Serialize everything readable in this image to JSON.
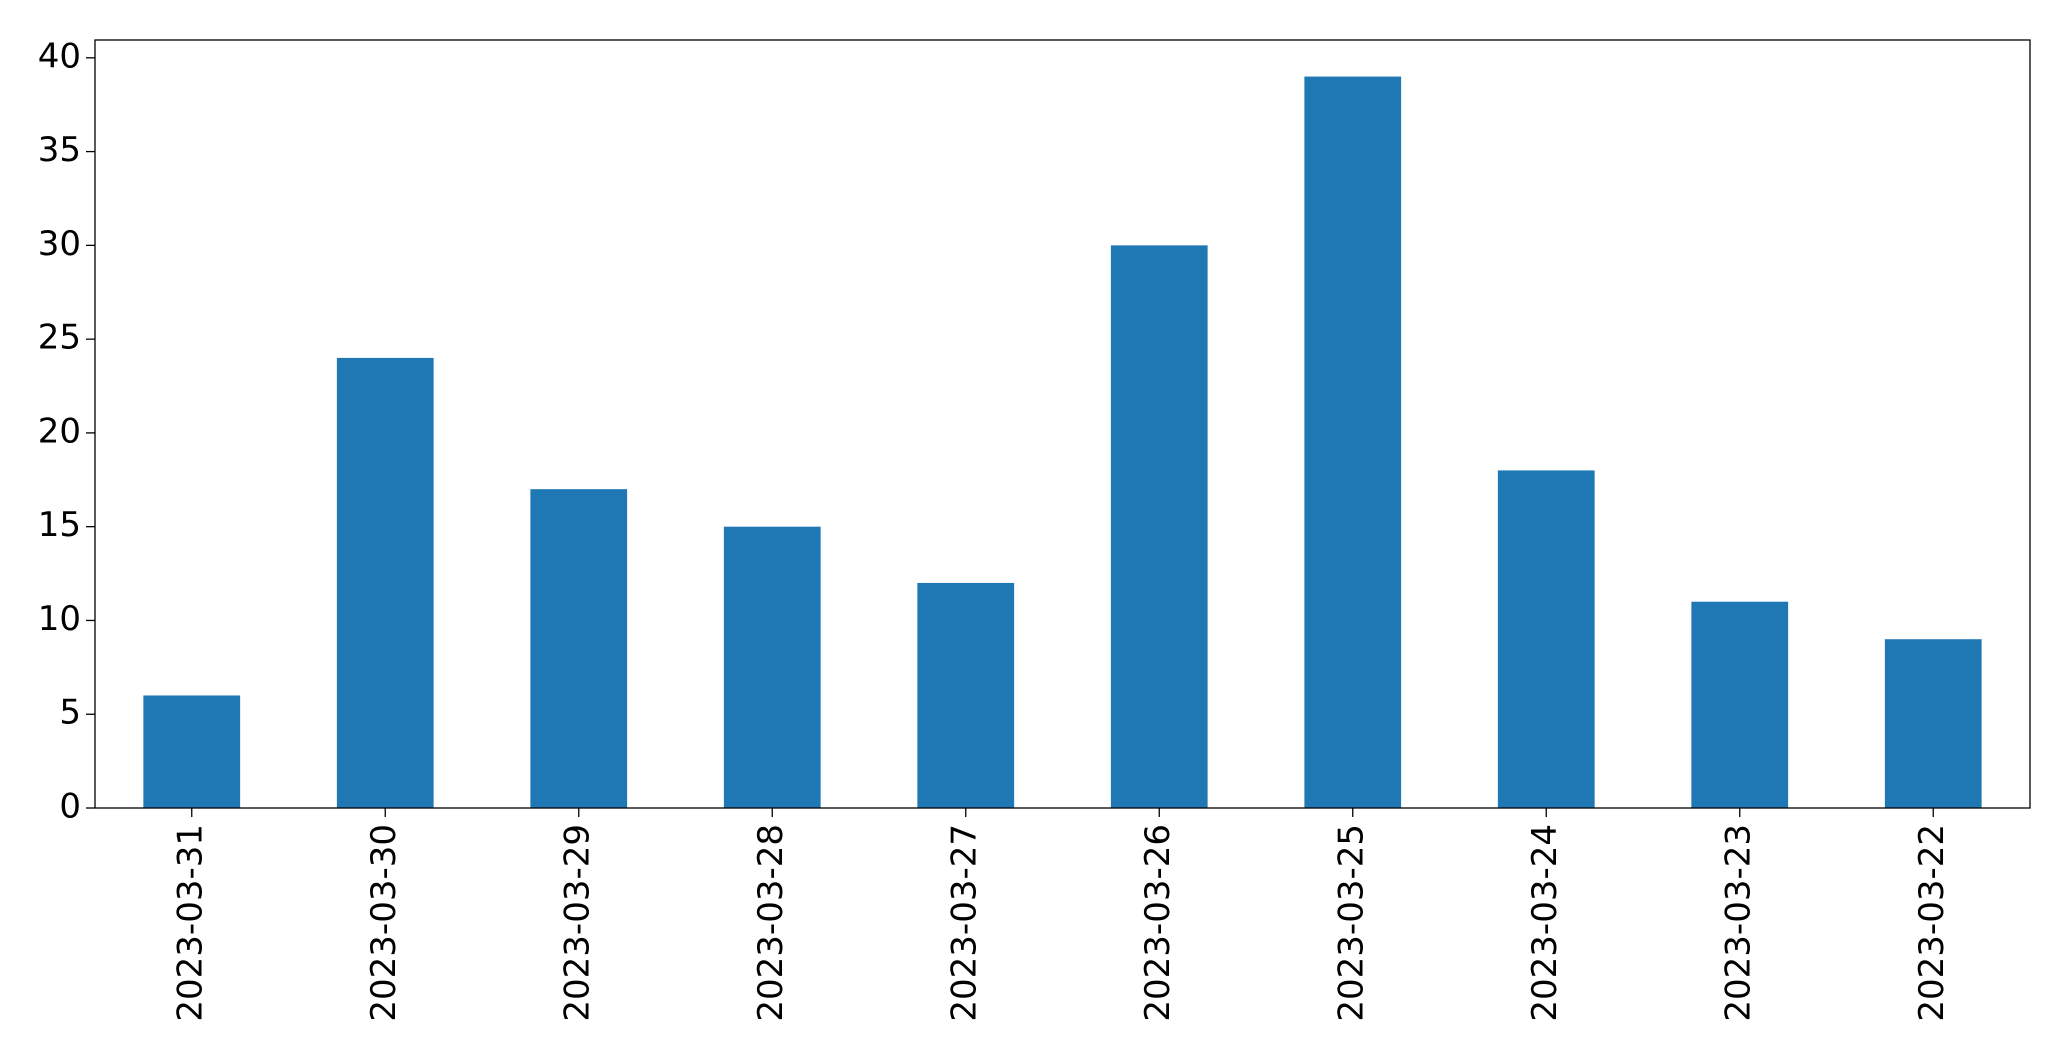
{
  "chart_data": {
    "type": "bar",
    "categories": [
      "2023-03-31",
      "2023-03-30",
      "2023-03-29",
      "2023-03-28",
      "2023-03-27",
      "2023-03-26",
      "2023-03-25",
      "2023-03-24",
      "2023-03-23",
      "2023-03-22"
    ],
    "values": [
      6,
      24,
      17,
      15,
      12,
      30,
      39,
      18,
      11,
      9
    ],
    "color": "#1f77b4",
    "ylim": [
      0,
      40.95
    ],
    "yticks": [
      0,
      5,
      10,
      15,
      20,
      25,
      30,
      35,
      40
    ],
    "grid": false
  }
}
